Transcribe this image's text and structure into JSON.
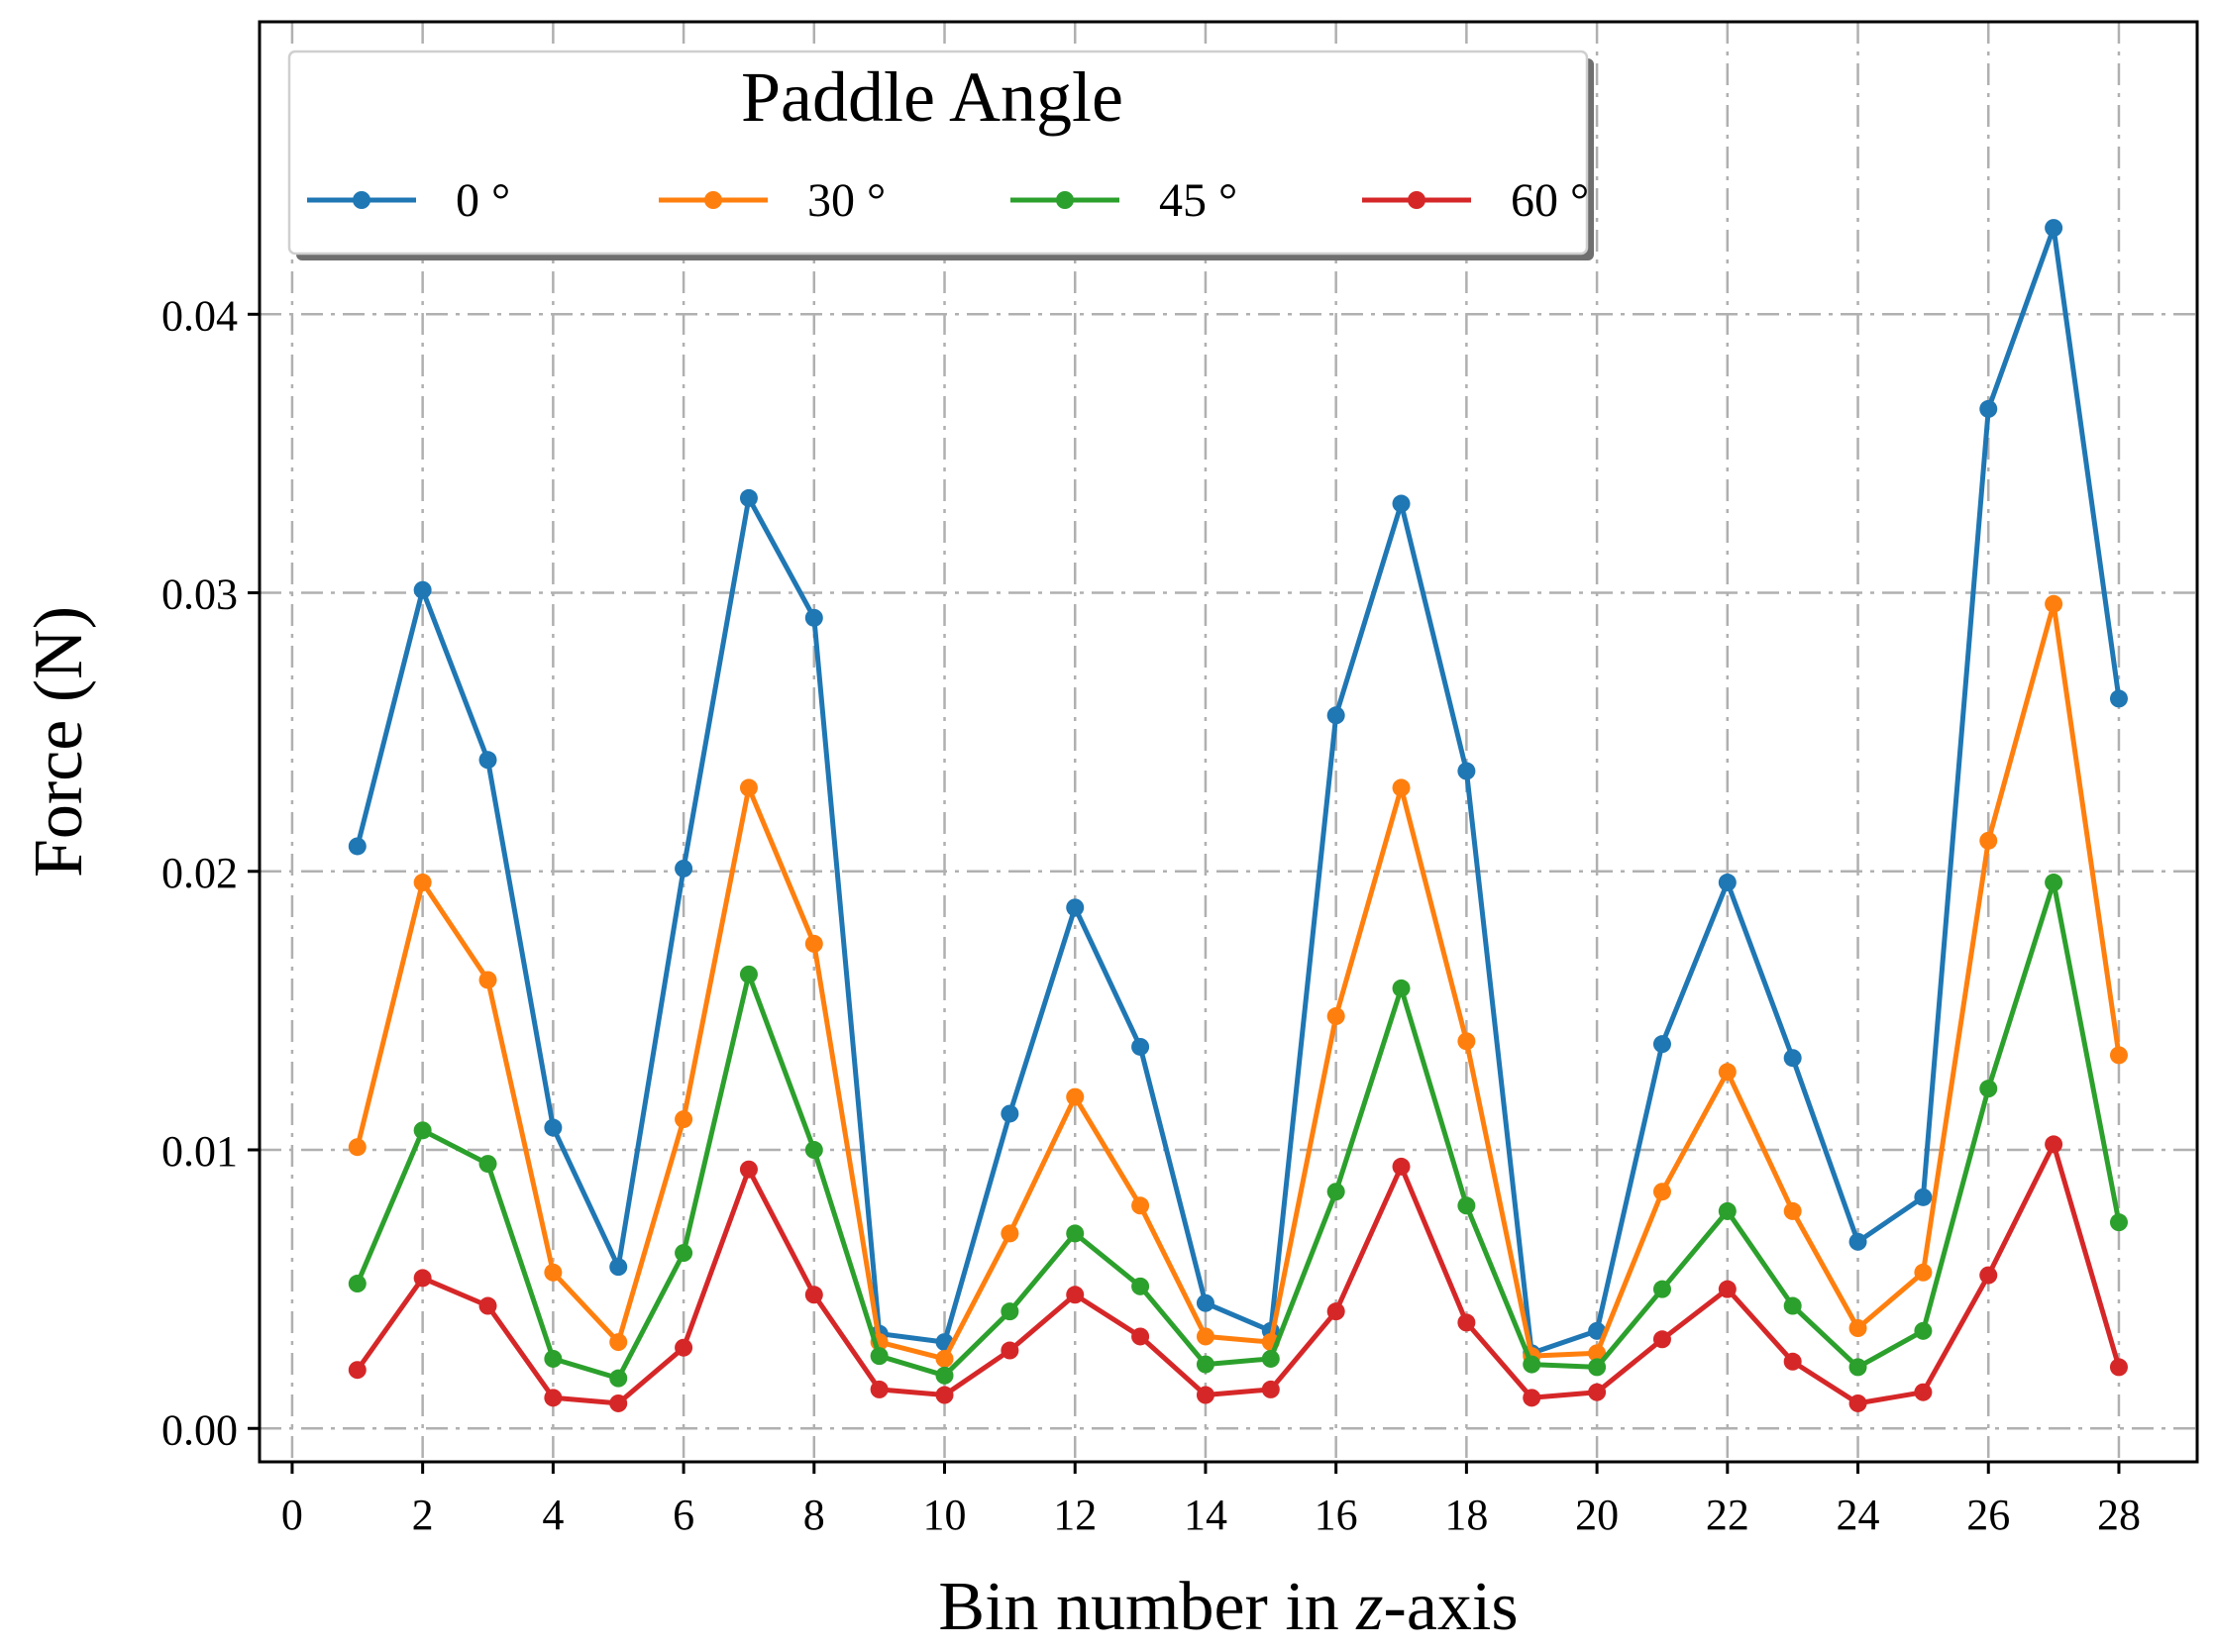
{
  "chart_data": {
    "type": "line",
    "title": "",
    "xlabel_prefix": "Bin number in ",
    "xlabel_var": "z",
    "xlabel_suffix": "-axis",
    "ylabel": "Force (N)",
    "xlim": [
      -0.5,
      29.2
    ],
    "ylim": [
      -0.0012,
      0.0505
    ],
    "x_ticks": [
      0,
      2,
      4,
      6,
      8,
      10,
      12,
      14,
      16,
      18,
      20,
      22,
      24,
      26,
      28
    ],
    "x_tick_labels": [
      "0",
      "2",
      "4",
      "6",
      "8",
      "10",
      "12",
      "14",
      "16",
      "18",
      "20",
      "22",
      "24",
      "26",
      "28"
    ],
    "y_ticks": [
      0.0,
      0.01,
      0.02,
      0.03,
      0.04
    ],
    "y_tick_labels": [
      "0.00",
      "0.01",
      "0.02",
      "0.03",
      "0.04"
    ],
    "grid": true,
    "legend": {
      "title": "Paddle Angle",
      "placement": "top-left",
      "ncol": 4
    },
    "x": [
      1,
      2,
      3,
      4,
      5,
      6,
      7,
      8,
      9,
      10,
      11,
      12,
      13,
      14,
      15,
      16,
      17,
      18,
      19,
      20,
      21,
      22,
      23,
      24,
      25,
      26,
      27,
      28
    ],
    "series": [
      {
        "name": "0 °",
        "color": "#1f77b4",
        "values": [
          0.0209,
          0.0301,
          0.024,
          0.0108,
          0.0058,
          0.0201,
          0.0334,
          0.0291,
          0.0034,
          0.0031,
          0.0113,
          0.0187,
          0.0137,
          0.0045,
          0.0035,
          0.0256,
          0.0332,
          0.0236,
          0.0027,
          0.0035,
          0.0138,
          0.0196,
          0.0133,
          0.0067,
          0.0083,
          0.0366,
          0.0431,
          0.0262
        ]
      },
      {
        "name": "30 °",
        "color": "#ff7f0e",
        "values": [
          0.0101,
          0.0196,
          0.0161,
          0.0056,
          0.0031,
          0.0111,
          0.023,
          0.0174,
          0.0031,
          0.0025,
          0.007,
          0.0119,
          0.008,
          0.0033,
          0.0031,
          0.0148,
          0.023,
          0.0139,
          0.0026,
          0.0027,
          0.0085,
          0.0128,
          0.0078,
          0.0036,
          0.0056,
          0.0211,
          0.0296,
          0.0134
        ]
      },
      {
        "name": "45 °",
        "color": "#2ca02c",
        "values": [
          0.0052,
          0.0107,
          0.0095,
          0.0025,
          0.0018,
          0.0063,
          0.0163,
          0.01,
          0.0026,
          0.0019,
          0.0042,
          0.007,
          0.0051,
          0.0023,
          0.0025,
          0.0085,
          0.0158,
          0.008,
          0.0023,
          0.0022,
          0.005,
          0.0078,
          0.0044,
          0.0022,
          0.0035,
          0.0122,
          0.0196,
          0.0074
        ]
      },
      {
        "name": "60 °",
        "color": "#d62728",
        "values": [
          0.0021,
          0.0054,
          0.0044,
          0.0011,
          0.0009,
          0.0029,
          0.0093,
          0.0048,
          0.0014,
          0.0012,
          0.0028,
          0.0048,
          0.0033,
          0.0012,
          0.0014,
          0.0042,
          0.0094,
          0.0038,
          0.0011,
          0.0013,
          0.0032,
          0.005,
          0.0024,
          0.0009,
          0.0013,
          0.0055,
          0.0102,
          0.0022
        ]
      }
    ]
  }
}
